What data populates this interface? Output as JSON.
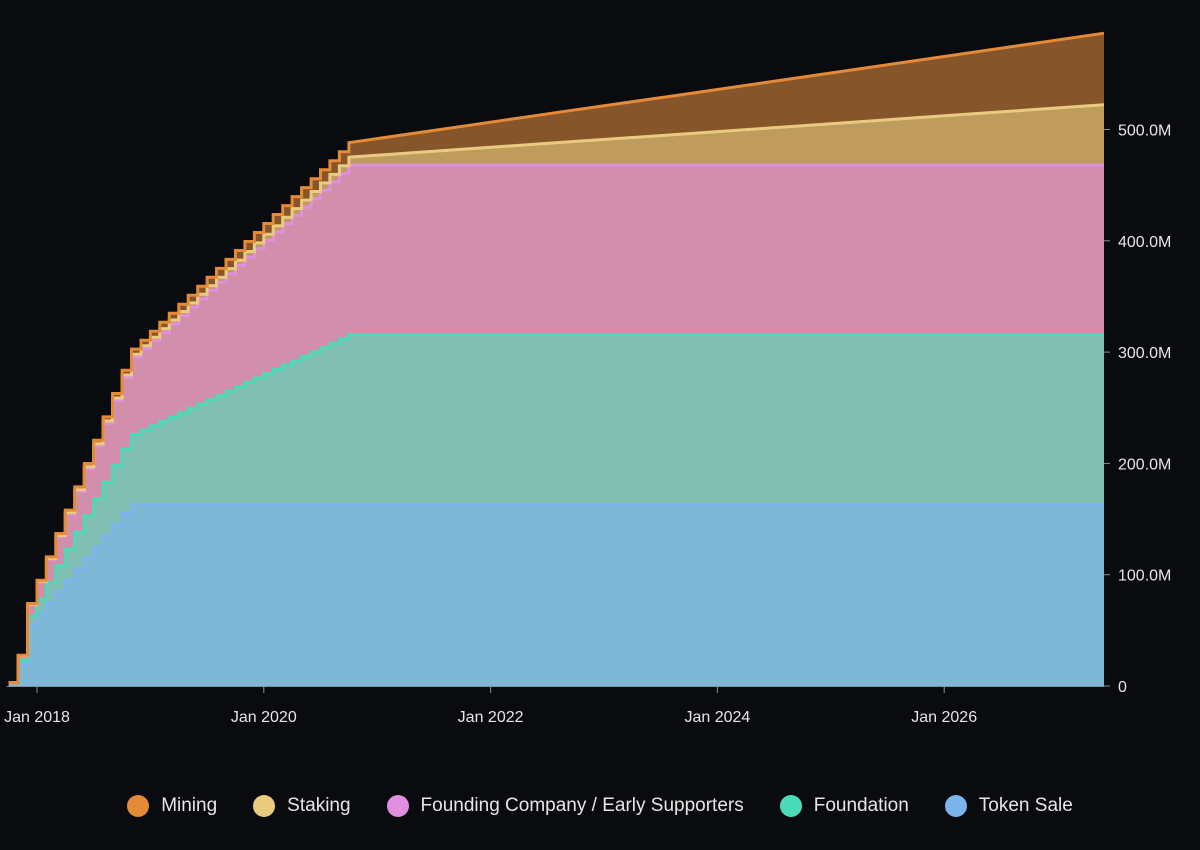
{
  "chart_data": {
    "type": "area",
    "stacked": true,
    "title": "",
    "xlabel": "",
    "ylabel": "",
    "ylim": [
      0,
      585
    ],
    "y_unit": "M",
    "y_ticks": [
      "0",
      "100.0M",
      "200.0M",
      "300.0M",
      "400.0M",
      "500.0M"
    ],
    "y_tick_values": [
      0,
      100,
      200,
      300,
      400,
      500
    ],
    "x_ticks": [
      "Jan 2018",
      "Jan 2020",
      "Jan 2022",
      "Jan 2024",
      "Jan 2026"
    ],
    "x_tick_values": [
      "2018-01",
      "2020-01",
      "2022-01",
      "2024-01",
      "2026-01"
    ],
    "y_axis_position": "right",
    "legend_position": "bottom",
    "grid": false,
    "x": [
      "2017-10",
      "2017-11",
      "2017-12",
      "2018-01",
      "2018-02",
      "2018-03",
      "2018-04",
      "2018-05",
      "2018-06",
      "2018-07",
      "2018-08",
      "2018-09",
      "2018-10",
      "2018-11",
      "2018-12",
      "2019-01",
      "2019-02",
      "2019-03",
      "2019-04",
      "2019-05",
      "2019-06",
      "2019-07",
      "2019-08",
      "2019-09",
      "2019-10",
      "2019-11",
      "2019-12",
      "2020-01",
      "2020-02",
      "2020-03",
      "2020-04",
      "2020-05",
      "2020-06",
      "2020-07",
      "2020-08",
      "2020-09",
      "2020-10",
      "2021-10",
      "2022-10",
      "2023-10",
      "2024-10",
      "2025-10",
      "2026-10",
      "2027-06"
    ],
    "series": [
      {
        "name": "Token Sale",
        "fill": "#7fb8d6",
        "stroke": "#7cb4ec",
        "values": [
          3,
          20,
          55,
          65,
          75,
          85,
          95,
          105,
          115,
          125,
          135,
          145,
          155,
          163,
          163,
          163,
          163,
          163,
          163,
          163,
          163,
          163,
          163,
          163,
          163,
          163,
          163,
          163,
          163,
          163,
          163,
          163,
          163,
          163,
          163,
          163,
          163,
          163,
          163,
          163,
          163,
          163,
          163,
          163
        ]
      },
      {
        "name": "Foundation",
        "fill": "#80bfb2",
        "stroke": "#4bdbb8",
        "values": [
          0,
          3,
          8,
          13,
          18,
          23,
          28,
          33,
          38,
          43,
          48,
          53,
          58,
          63,
          66.9,
          70.8,
          74.7,
          78.6,
          82.5,
          86.4,
          90.3,
          94.2,
          98.1,
          102,
          105.9,
          109.8,
          113.7,
          117.6,
          121.5,
          125.4,
          129.3,
          133.2,
          137.1,
          141,
          144.9,
          148.8,
          152.7,
          152.7,
          152.7,
          152.7,
          152.7,
          152.7,
          152.7,
          152.7
        ]
      },
      {
        "name": "Founding Company / Early Supporters",
        "fill": "#d18fab",
        "stroke": "#e08ee0",
        "values": [
          0,
          4,
          10,
          15.4,
          20.8,
          26.2,
          31.6,
          37,
          42.4,
          47.8,
          53.2,
          58.6,
          64,
          69.4,
          73,
          76.6,
          80.2,
          83.8,
          87.4,
          91,
          94.6,
          98.2,
          101.8,
          105.4,
          109,
          112.6,
          116.2,
          119.8,
          123.4,
          127,
          130.6,
          134.2,
          137.8,
          141.4,
          145,
          148.6,
          152.2,
          152.2,
          152.2,
          152.2,
          152.2,
          152.2,
          152.2,
          152.2
        ]
      },
      {
        "name": "Staking",
        "fill": "#bf9b5d",
        "stroke": "#e9cb80",
        "values": [
          0,
          0.2,
          0.4,
          0.6,
          0.8,
          1,
          1.2,
          1.4,
          1.6,
          1.8,
          2,
          2.2,
          2.4,
          2.6,
          2.8,
          3,
          3.2,
          3.4,
          3.6,
          3.8,
          4,
          4.2,
          4.4,
          4.6,
          4.8,
          5,
          5.2,
          5.4,
          5.6,
          5.8,
          6,
          6.2,
          6.4,
          6.6,
          6.8,
          7,
          7.2,
          14.3,
          21.4,
          28.4,
          35.5,
          42.6,
          49.7,
          54.4
        ]
      },
      {
        "name": "Mining",
        "fill": "#87552a",
        "stroke": "#e58a37",
        "values": [
          0,
          0.4,
          0.7,
          1.1,
          1.4,
          1.8,
          2.2,
          2.5,
          2.9,
          3.2,
          3.6,
          4,
          4.3,
          4.7,
          5,
          5.4,
          5.8,
          6.1,
          6.5,
          6.8,
          7.2,
          7.6,
          7.9,
          8.3,
          8.6,
          9,
          9.4,
          9.7,
          10.1,
          10.4,
          10.8,
          11.2,
          11.5,
          11.9,
          12.2,
          12.6,
          13,
          20.7,
          28.4,
          36,
          43.7,
          51.4,
          59.1,
          64.2
        ]
      }
    ]
  },
  "legend": [
    {
      "label": "Mining",
      "color": "#e58a37"
    },
    {
      "label": "Staking",
      "color": "#e9cb80"
    },
    {
      "label": "Founding Company / Early Supporters",
      "color": "#e08ee0"
    },
    {
      "label": "Foundation",
      "color": "#4bdbb8"
    },
    {
      "label": "Token Sale",
      "color": "#7cb4ec"
    }
  ]
}
